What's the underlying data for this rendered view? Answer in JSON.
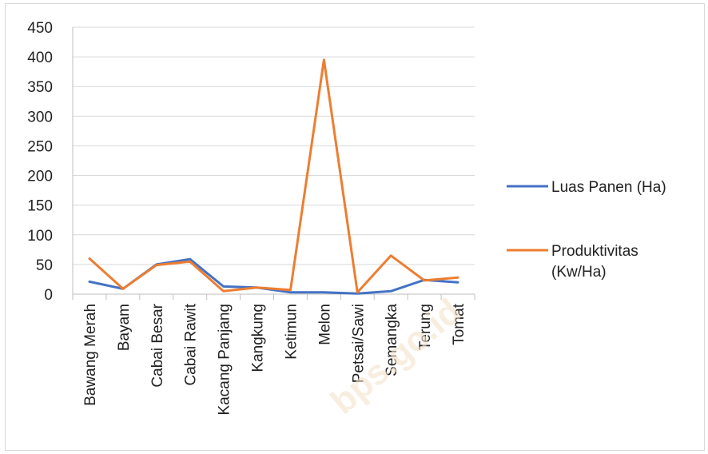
{
  "chart_data": {
    "type": "line",
    "categories": [
      "Bawang Merah",
      "Bayam",
      "Cabai Besar",
      "Cabai Rawit",
      "Kacang Panjang",
      "Kangkung",
      "Ketimun",
      "Melon",
      "Petsai/Sawi",
      "Semangka",
      "Terung",
      "Tomat"
    ],
    "series": [
      {
        "name": "Luas Panen (Ha)",
        "color": "#4472C4",
        "values": [
          21,
          9,
          50,
          59,
          13,
          11,
          3,
          3,
          1,
          5,
          24,
          20
        ]
      },
      {
        "name": "Produktivitas (Kw/Ha)",
        "color": "#ED7D31",
        "values": [
          60,
          9,
          49,
          55,
          5,
          11,
          7,
          395,
          3,
          65,
          23,
          28
        ]
      }
    ],
    "yticks": [
      "0",
      "50",
      "100",
      "150",
      "200",
      "250",
      "300",
      "350",
      "400",
      "450"
    ],
    "ylim": [
      0,
      450
    ],
    "grid": true,
    "legend_position": "right",
    "legend_lines": [
      [
        "Luas Panen (Ha)"
      ],
      [
        "Produktivitas",
        "(Kw/Ha)"
      ]
    ],
    "watermark": "bps.go.id"
  }
}
